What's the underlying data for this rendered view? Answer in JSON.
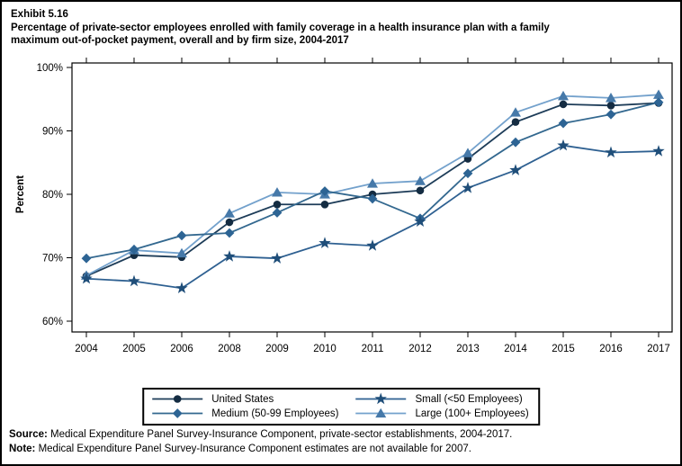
{
  "title": {
    "exhibit": "Exhibit 5.16",
    "desc_line1": "Percentage of private-sector employees enrolled with family coverage in a health insurance plan with a family",
    "desc_line2": "maximum out-of-pocket payment, overall and by firm size, 2004-2017"
  },
  "footer": {
    "source_label": "Source:",
    "source_text": " Medical Expenditure Panel Survey-Insurance Component, private-sector establishments, 2004-2017.",
    "note_label": "Note:",
    "note_text": " Medical Expenditure Panel Survey-Insurance Component estimates are not available for 2007."
  },
  "chart_data": {
    "type": "line",
    "title": "Percentage of private-sector employees enrolled with family coverage in a health insurance plan with a family maximum out-of-pocket payment, overall and by firm size, 2004-2017",
    "xlabel": "",
    "ylabel": "Percent",
    "ylim": [
      60,
      100
    ],
    "yticks": [
      60,
      70,
      80,
      90,
      100
    ],
    "ytick_labels": [
      "60%",
      "70%",
      "80%",
      "90%",
      "100%"
    ],
    "categories": [
      "2004",
      "2005",
      "2006",
      "2008",
      "2009",
      "2010",
      "2011",
      "2012",
      "2013",
      "2014",
      "2015",
      "2016",
      "2017"
    ],
    "grid": false,
    "legend_position": "bottom",
    "note": "2007 estimates not available",
    "series": [
      {
        "name": "United States",
        "marker": "circle",
        "color": "#142c42",
        "line_color": "#1d3c58",
        "values": [
          67.1,
          70.4,
          70.1,
          75.6,
          78.4,
          78.4,
          80.0,
          80.6,
          85.6,
          91.4,
          94.2,
          94.0,
          94.4
        ]
      },
      {
        "name": "Medium (50-99 Employees)",
        "marker": "diamond",
        "color": "#2d6494",
        "line_color": "#33688f",
        "values": [
          69.9,
          71.3,
          73.5,
          73.9,
          77.1,
          80.5,
          79.3,
          76.2,
          83.3,
          88.2,
          91.2,
          92.6,
          94.5
        ]
      },
      {
        "name": "Small (<50 Employees)",
        "marker": "star",
        "color": "#1f4e79",
        "line_color": "#2e6091",
        "values": [
          66.7,
          66.3,
          65.2,
          70.2,
          69.9,
          72.3,
          71.9,
          75.7,
          81.0,
          83.8,
          87.7,
          86.6,
          86.8
        ]
      },
      {
        "name": "Large (100+ Employees)",
        "marker": "triangle",
        "color": "#4679a9",
        "line_color": "#73a1cc",
        "values": [
          67.2,
          71.2,
          70.7,
          77.0,
          80.3,
          80.0,
          81.7,
          82.1,
          86.5,
          92.9,
          95.5,
          95.2,
          95.7
        ]
      }
    ],
    "draw_order": [
      0,
      3,
      1,
      2
    ],
    "legend_layout": [
      0,
      2,
      1,
      3
    ]
  }
}
